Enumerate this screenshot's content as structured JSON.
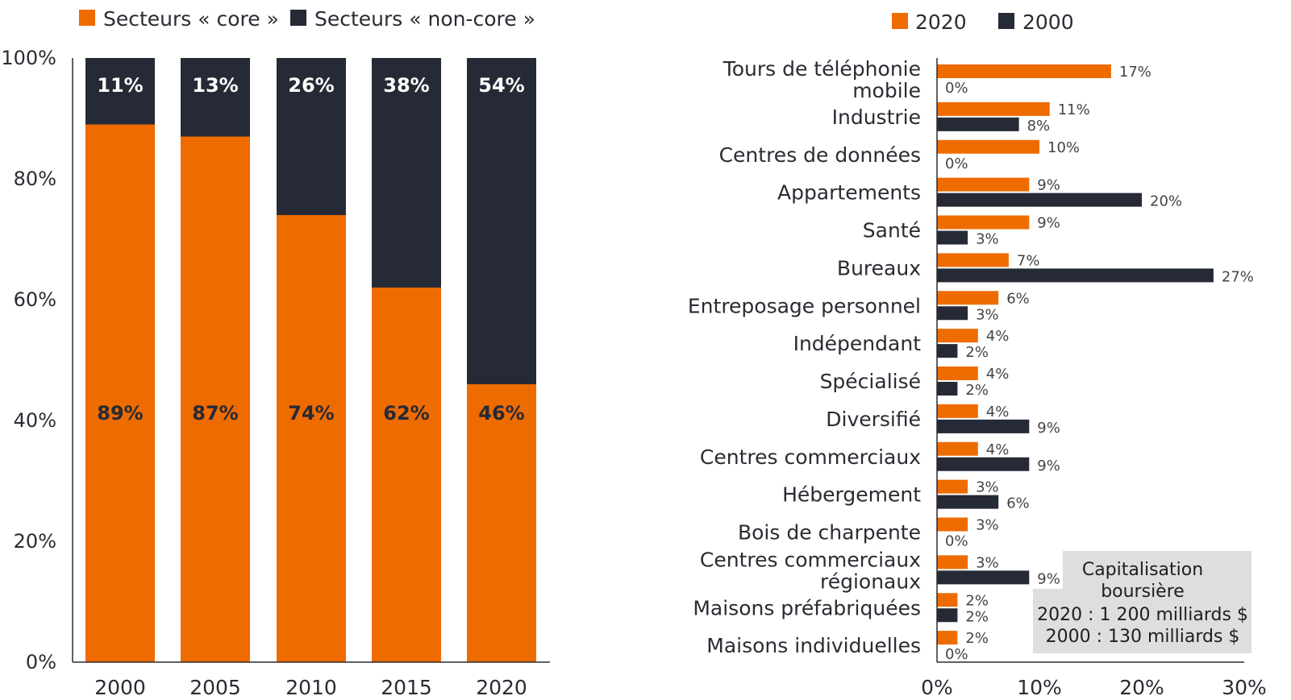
{
  "colors": {
    "core": "#ee6b00",
    "non_core": "#262a36",
    "annotation_bg": "#dedede",
    "axis": "#2b2b33"
  },
  "chart_data": [
    {
      "type": "bar",
      "stacked": true,
      "orientation": "vertical",
      "categories": [
        "2000",
        "2005",
        "2010",
        "2015",
        "2020"
      ],
      "series": [
        {
          "name": "Secteurs « core »",
          "values": [
            89,
            87,
            74,
            62,
            46
          ],
          "labels": [
            "89%",
            "87%",
            "74%",
            "62%",
            "46%"
          ]
        },
        {
          "name": "Secteurs « non-core »",
          "values": [
            11,
            13,
            26,
            38,
            54
          ],
          "labels": [
            "11%",
            "13%",
            "26%",
            "38%",
            "54%"
          ]
        }
      ],
      "ylim": [
        0,
        100
      ],
      "yticks": [
        "0%",
        "20%",
        "40%",
        "60%",
        "80%",
        "100%"
      ],
      "legend": "top",
      "grid": false
    },
    {
      "type": "bar",
      "orientation": "horizontal",
      "categories": [
        [
          "Tours de téléphonie",
          "mobile"
        ],
        [
          "Industrie"
        ],
        [
          "Centres de données"
        ],
        [
          "Appartements"
        ],
        [
          "Santé"
        ],
        [
          "Bureaux"
        ],
        [
          "Entreposage personnel"
        ],
        [
          "Indépendant"
        ],
        [
          "Spécialisé"
        ],
        [
          "Diversifié"
        ],
        [
          "Centres commerciaux"
        ],
        [
          "Hébergement"
        ],
        [
          "Bois de charpente"
        ],
        [
          "Centres commerciaux",
          "régionaux"
        ],
        [
          "Maisons préfabriquées"
        ],
        [
          "Maisons individuelles"
        ]
      ],
      "series": [
        {
          "name": "2020",
          "values": [
            17,
            11,
            10,
            9,
            9,
            7,
            6,
            4,
            4,
            4,
            4,
            3,
            3,
            3,
            2,
            2
          ]
        },
        {
          "name": "2000",
          "values": [
            0,
            8,
            0,
            20,
            3,
            27,
            3,
            2,
            2,
            9,
            9,
            6,
            0,
            9,
            2,
            0
          ]
        }
      ],
      "xlim": [
        0,
        30
      ],
      "xticks": [
        "0%",
        "10%",
        "20%",
        "30%"
      ],
      "legend": "top",
      "grid": false,
      "annotation": [
        "Capitalisation",
        "boursière",
        "2020 : 1 200 milliards $",
        "2000 : 130 milliards $"
      ]
    }
  ]
}
